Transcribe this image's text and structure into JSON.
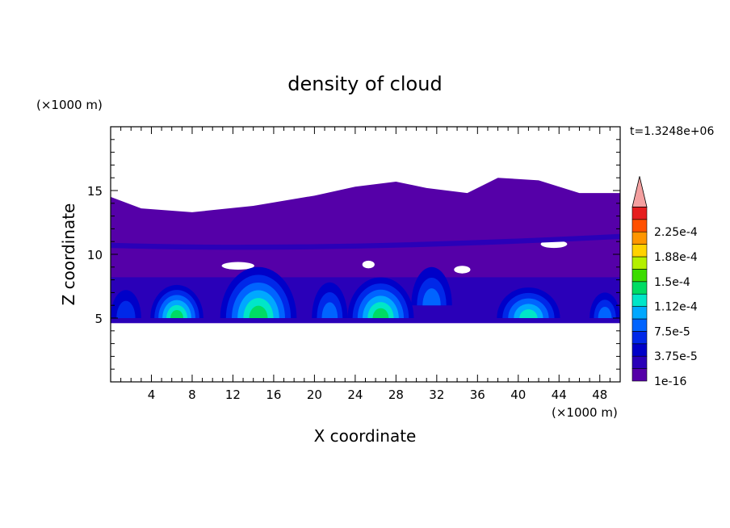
{
  "chart_data": {
    "type": "heatmap",
    "title": "density of cloud",
    "xlabel": "X coordinate",
    "ylabel": "Z coordinate",
    "x_unit": "(×1000 m)",
    "y_unit": "(×1000 m)",
    "time_label": "t=1.3248e+06",
    "xlim": [
      0,
      50
    ],
    "ylim": [
      0,
      20
    ],
    "x_ticks": [
      4,
      8,
      12,
      16,
      20,
      24,
      28,
      32,
      36,
      40,
      44,
      48
    ],
    "y_ticks": [
      5,
      10,
      15
    ],
    "colorbar": {
      "levels": [
        {
          "value": "1e-16",
          "color": "#5500a8"
        },
        {
          "value": "",
          "color": "#2a00b8"
        },
        {
          "value": "3.75e-5",
          "color": "#0000c8"
        },
        {
          "value": "",
          "color": "#0028e8"
        },
        {
          "value": "7.5e-5",
          "color": "#0064ff"
        },
        {
          "value": "",
          "color": "#00a8ff"
        },
        {
          "value": "1.12e-4",
          "color": "#00e6c8"
        },
        {
          "value": "",
          "color": "#00dc64"
        },
        {
          "value": "1.5e-4",
          "color": "#3cdc00"
        },
        {
          "value": "",
          "color": "#b4f000"
        },
        {
          "value": "1.88e-4",
          "color": "#ffd200"
        },
        {
          "value": "",
          "color": "#ff9600"
        },
        {
          "value": "2.25e-4",
          "color": "#ff5000"
        },
        {
          "value": "",
          "color": "#e61e1e"
        }
      ],
      "extend_color": "#f4a0a0"
    },
    "regions": {
      "cloud_top_km": [
        [
          0,
          14.5
        ],
        [
          3,
          13.6
        ],
        [
          8,
          13.3
        ],
        [
          14,
          13.8
        ],
        [
          20,
          14.6
        ],
        [
          24,
          15.3
        ],
        [
          28,
          15.7
        ],
        [
          31,
          15.2
        ],
        [
          35,
          14.8
        ],
        [
          38,
          16
        ],
        [
          42,
          15.8
        ],
        [
          46,
          14.8
        ],
        [
          50,
          14.8
        ]
      ],
      "cloud_base_km": 4.6,
      "cores": [
        {
          "x": 6.5,
          "z": 5.9,
          "peak": "1.12e-4"
        },
        {
          "x": 14.5,
          "z": 6.4,
          "peak": "1.12e-4"
        },
        {
          "x": 26.5,
          "z": 6.0,
          "peak": "1.12e-4"
        },
        {
          "x": 41,
          "z": 5.8,
          "peak": "7.5e-5"
        }
      ]
    }
  }
}
